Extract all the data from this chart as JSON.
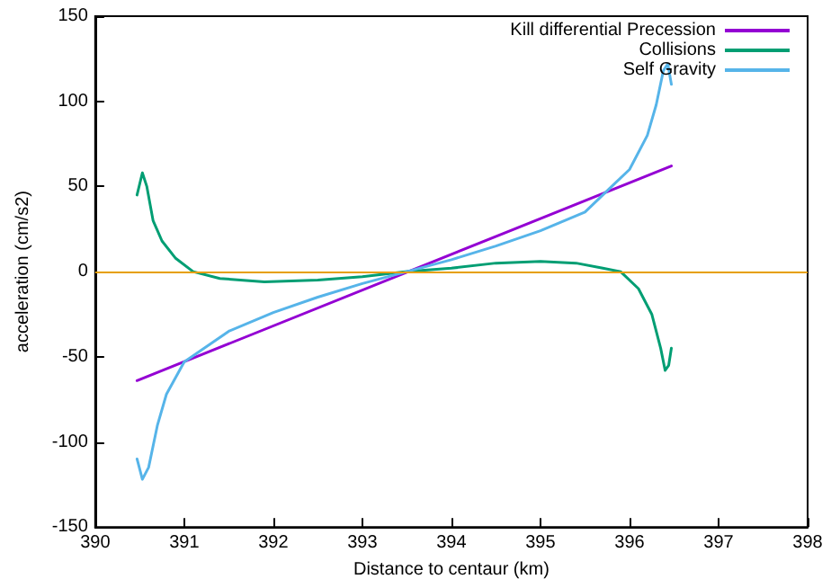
{
  "chart_data": {
    "type": "line",
    "xlabel": "Distance to centaur (km)",
    "ylabel": "acceleration (cm/s2)",
    "xlim": [
      390,
      398
    ],
    "xticks": [
      390,
      391,
      392,
      393,
      394,
      395,
      396,
      397,
      398
    ],
    "ylim": [
      -150,
      150
    ],
    "yticks": [
      -150,
      -100,
      -50,
      0,
      50,
      100,
      150
    ],
    "grid": false,
    "legend": "top right",
    "marker": "none",
    "line_style": "solid",
    "ref_lines": [
      {
        "axis": "y",
        "value": 0,
        "label": null,
        "color": "#e69f00"
      }
    ],
    "series": [
      {
        "name": "Kill differential Precession",
        "color": "#9400d3",
        "x": [
          390.47,
          396.47
        ],
        "values": [
          -64,
          62
        ]
      },
      {
        "name": "Collisions",
        "color": "#009e73",
        "x": [
          390.47,
          390.53,
          390.58,
          390.65,
          390.75,
          390.9,
          391.1,
          391.4,
          391.9,
          392.5,
          393,
          393.5,
          394,
          394.5,
          395,
          395.4,
          395.7,
          395.9,
          396.1,
          396.25,
          396.35,
          396.4,
          396.44,
          396.47
        ],
        "values": [
          45,
          58,
          50,
          30,
          18,
          8,
          0,
          -4,
          -6,
          -5,
          -3,
          0,
          2,
          5,
          6,
          5,
          2,
          0,
          -10,
          -25,
          -45,
          -58,
          -55,
          -45
        ]
      },
      {
        "name": "Self Gravity",
        "color": "#56b4e9",
        "x": [
          390.47,
          390.53,
          390.6,
          390.7,
          390.8,
          391,
          391.5,
          392,
          392.5,
          393,
          393.5,
          394,
          394.5,
          395,
          395.5,
          395.8,
          396,
          396.2,
          396.3,
          396.38,
          396.43,
          396.47
        ],
        "values": [
          -110,
          -122,
          -115,
          -90,
          -72,
          -53,
          -35,
          -24,
          -15,
          -7,
          0,
          7,
          15,
          24,
          35,
          50,
          60,
          80,
          98,
          118,
          122,
          110
        ]
      }
    ]
  }
}
